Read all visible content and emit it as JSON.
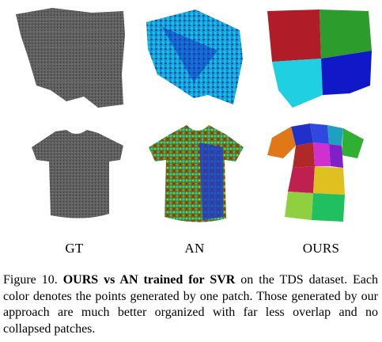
{
  "figure": {
    "columns": [
      "GT",
      "AN",
      "OURS"
    ],
    "rows": [
      "skirt",
      "tshirt"
    ],
    "colors": {
      "gt": "#5a5a5a",
      "an_skirt": [
        "#00c8d8",
        "#1030c8",
        "#1e6cd8"
      ],
      "ours_skirt": [
        "#b01c28",
        "#2c9c2c",
        "#20d0e0",
        "#1018c8"
      ],
      "an_tshirt": [
        "#c02020",
        "#2a8c2a",
        "#e07818",
        "#1d3acc",
        "#c8b020",
        "#30c0d0"
      ],
      "ours_tshirt": [
        "#2030c8",
        "#e07818",
        "#30b030",
        "#b02828",
        "#d030d0",
        "#8020c8",
        "#20a0c0",
        "#c02050",
        "#90d040",
        "#3048e0",
        "#e0c020",
        "#20c060"
      ]
    }
  },
  "caption": {
    "prefix": "Figure 10.",
    "bold": "OURS vs AN trained for SVR",
    "rest": "on the TDS dataset. Each color denotes the points generated by one patch. Those generated by our approach are much better organized with far less overlap and no collapsed patches."
  }
}
